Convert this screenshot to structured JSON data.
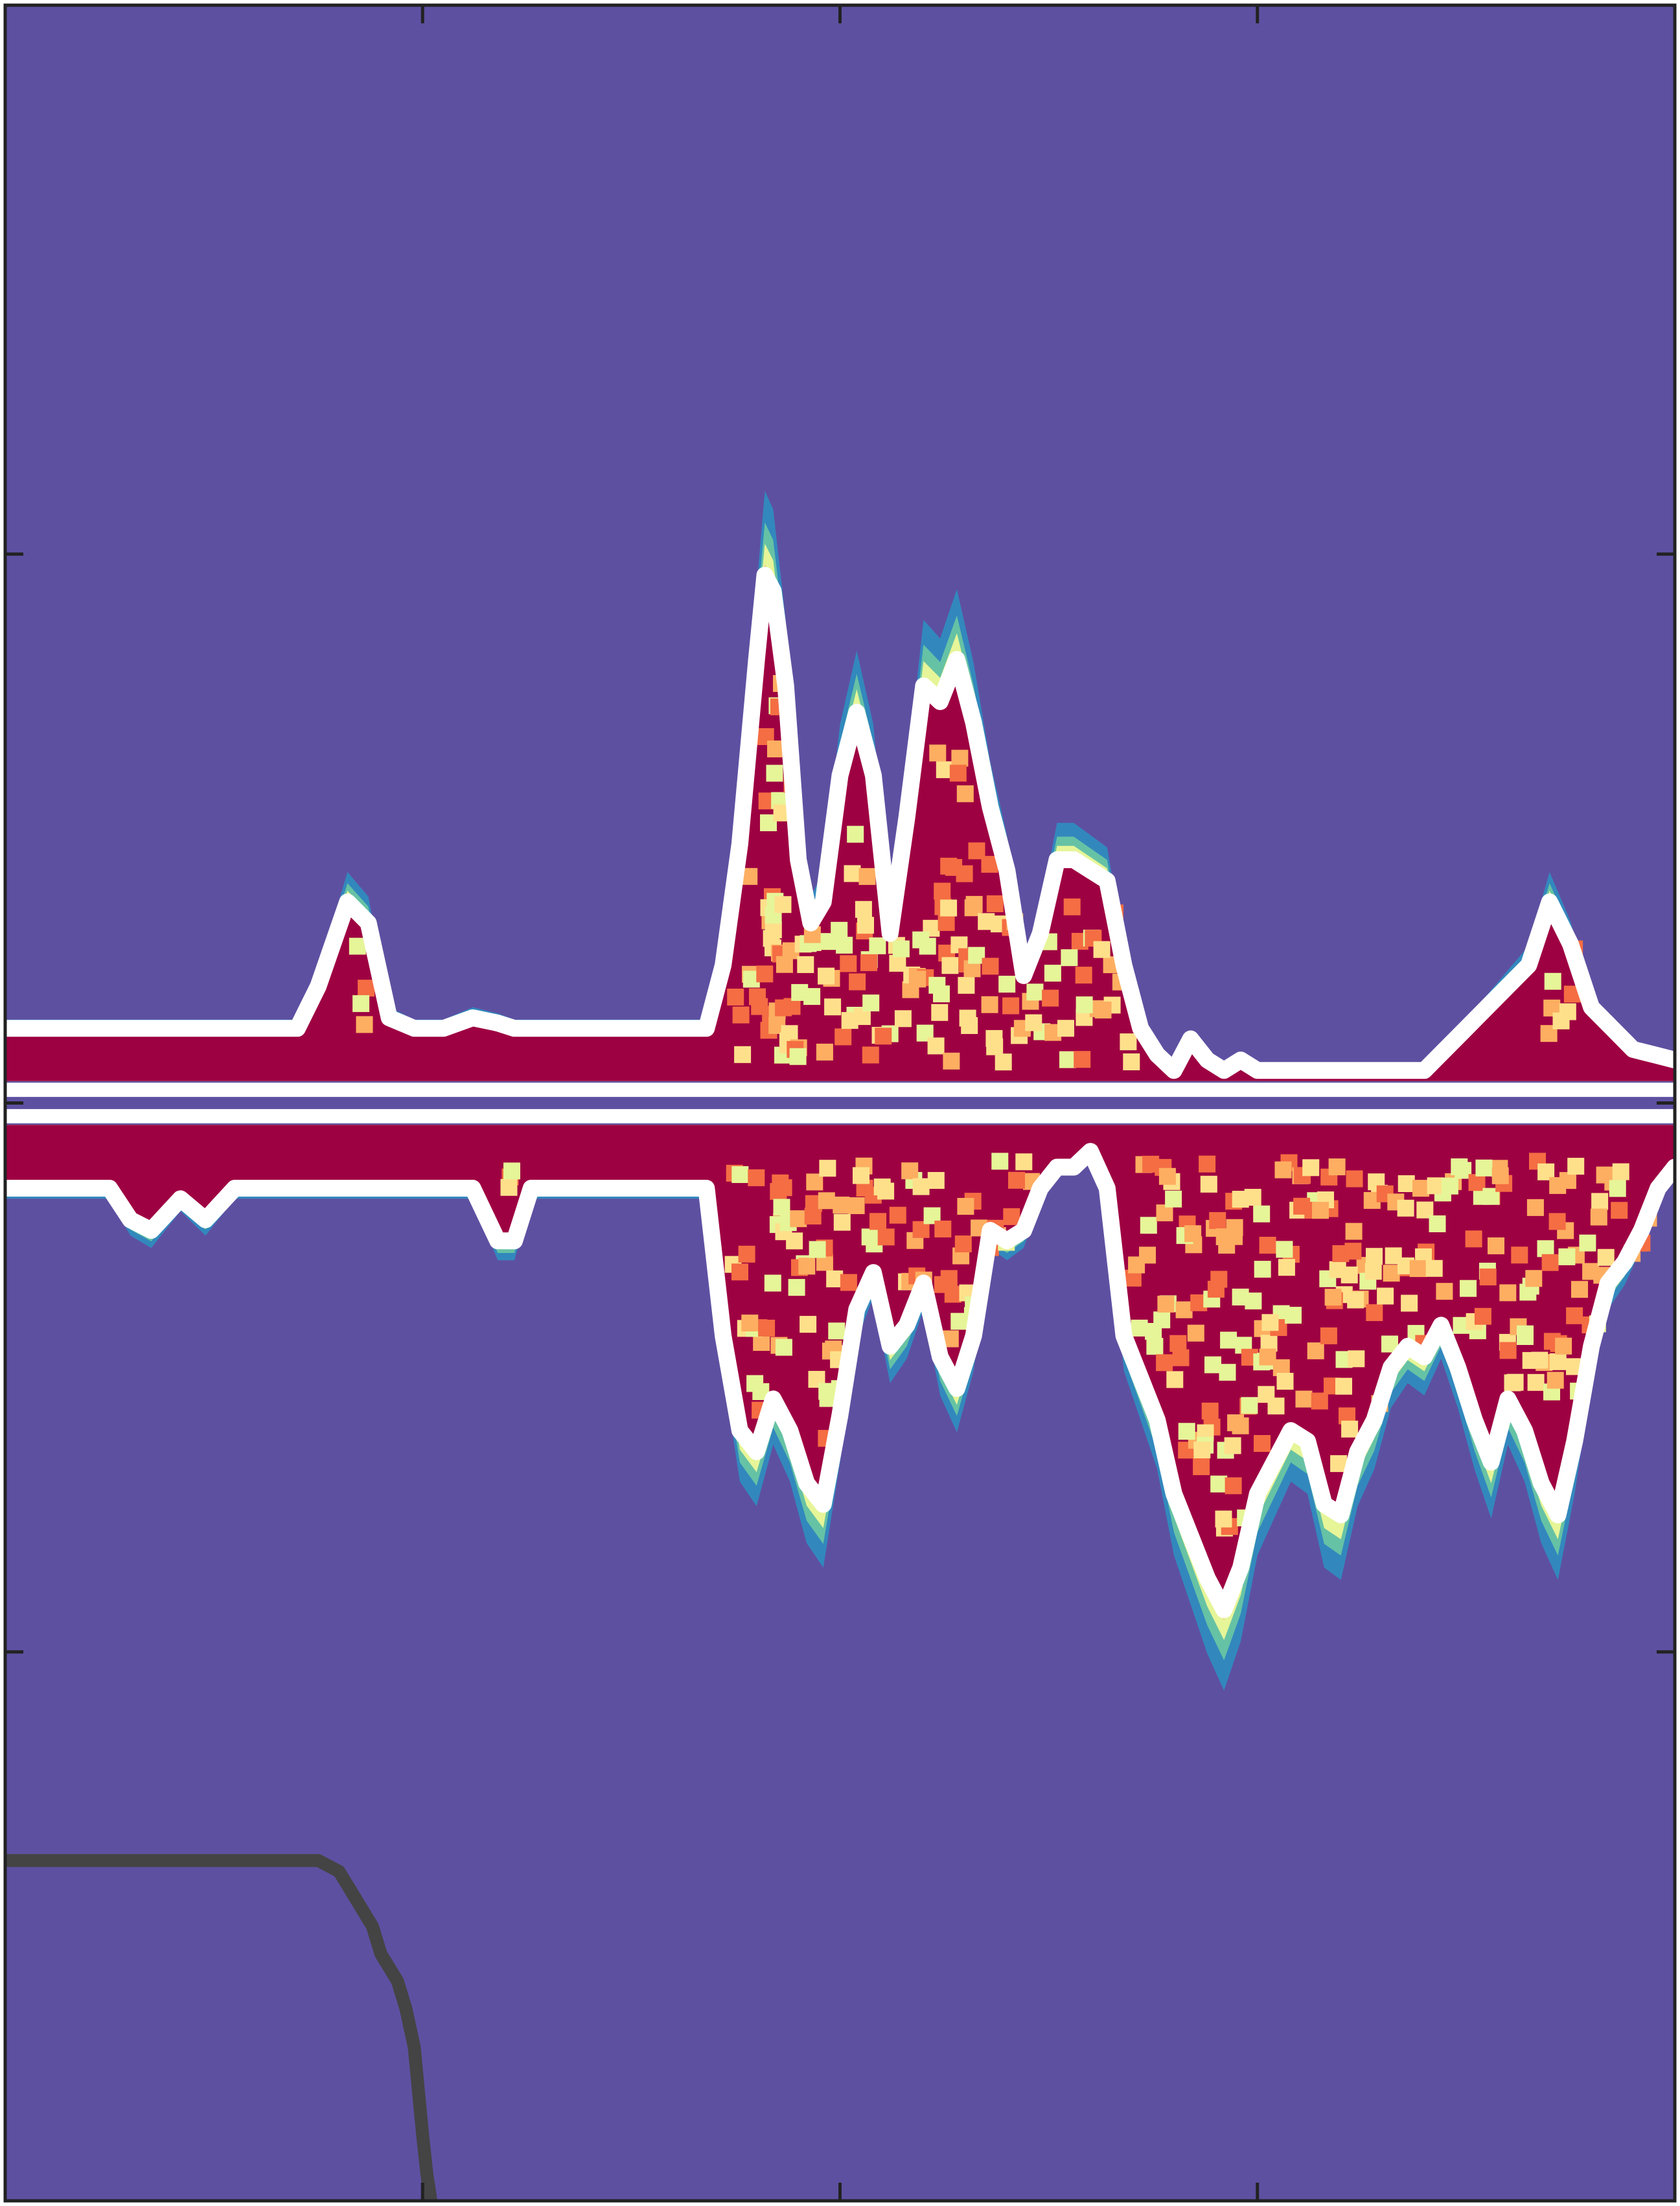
{
  "chart_data": {
    "type": "heatmap",
    "title": "",
    "xlabel": "",
    "ylabel": "",
    "xlim": [
      0,
      4
    ],
    "ylim": [
      -2,
      2
    ],
    "x_ticks": [
      1,
      2,
      3
    ],
    "y_ticks": [
      -1,
      0,
      1
    ],
    "tick_labels_shown": false,
    "grid": false,
    "legend": "none",
    "colormap": "spectral",
    "colors": {
      "background": "#5e50a1",
      "low": "#3288bd",
      "low_mid": "#66c2a5",
      "mid": "#e6f598",
      "mid_high": "#fee08b",
      "high": "#fdae61",
      "higher": "#f46d43",
      "peak": "#9e0142",
      "contour": "#ffffff",
      "boundary_curve": "#444444",
      "axes": "#222222"
    },
    "upper_band": {
      "baseline": 0.0,
      "x": [
        0.0,
        0.25,
        0.5,
        0.7,
        0.75,
        0.82,
        0.87,
        0.92,
        0.98,
        1.05,
        1.12,
        1.18,
        1.22,
        1.3,
        1.4,
        1.5,
        1.6,
        1.68,
        1.72,
        1.76,
        1.8,
        1.82,
        1.84,
        1.87,
        1.9,
        1.93,
        1.96,
        2.0,
        2.04,
        2.08,
        2.12,
        2.16,
        2.2,
        2.24,
        2.28,
        2.32,
        2.36,
        2.4,
        2.44,
        2.48,
        2.52,
        2.56,
        2.6,
        2.64,
        2.68,
        2.72,
        2.76,
        2.8,
        2.84,
        2.88,
        2.92,
        2.96,
        3.0,
        3.1,
        3.2,
        3.3,
        3.4,
        3.5,
        3.55,
        3.6,
        3.65,
        3.7,
        3.75,
        3.8,
        3.85,
        3.9,
        3.95,
        4.0
      ],
      "y": [
        0.1,
        0.1,
        0.1,
        0.1,
        0.18,
        0.34,
        0.3,
        0.12,
        0.1,
        0.1,
        0.12,
        0.11,
        0.1,
        0.1,
        0.1,
        0.1,
        0.1,
        0.1,
        0.22,
        0.45,
        0.8,
        0.96,
        0.93,
        0.75,
        0.42,
        0.3,
        0.34,
        0.58,
        0.7,
        0.58,
        0.28,
        0.5,
        0.75,
        0.72,
        0.8,
        0.68,
        0.52,
        0.4,
        0.2,
        0.28,
        0.42,
        0.42,
        0.4,
        0.38,
        0.22,
        0.1,
        0.05,
        0.02,
        0.08,
        0.04,
        0.02,
        0.04,
        0.02,
        0.02,
        0.02,
        0.02,
        0.02,
        0.1,
        0.14,
        0.18,
        0.22,
        0.34,
        0.26,
        0.14,
        0.1,
        0.06,
        0.05,
        0.04
      ]
    },
    "lower_band": {
      "baseline": 0.0,
      "x": [
        0.0,
        0.25,
        0.3,
        0.35,
        0.42,
        0.48,
        0.55,
        0.7,
        0.85,
        0.95,
        1.05,
        1.12,
        1.18,
        1.22,
        1.26,
        1.3,
        1.4,
        1.5,
        1.6,
        1.68,
        1.72,
        1.76,
        1.8,
        1.84,
        1.88,
        1.92,
        1.96,
        2.0,
        2.04,
        2.08,
        2.12,
        2.16,
        2.2,
        2.24,
        2.28,
        2.32,
        2.36,
        2.4,
        2.44,
        2.48,
        2.52,
        2.56,
        2.6,
        2.64,
        2.68,
        2.72,
        2.76,
        2.8,
        2.84,
        2.88,
        2.92,
        2.96,
        3.0,
        3.04,
        3.08,
        3.12,
        3.16,
        3.2,
        3.24,
        3.28,
        3.32,
        3.36,
        3.4,
        3.44,
        3.48,
        3.52,
        3.56,
        3.6,
        3.64,
        3.68,
        3.72,
        3.76,
        3.8,
        3.84,
        3.88,
        3.92,
        3.96,
        4.0
      ],
      "y": [
        0.12,
        0.12,
        0.18,
        0.2,
        0.14,
        0.18,
        0.12,
        0.12,
        0.12,
        0.12,
        0.12,
        0.12,
        0.22,
        0.22,
        0.12,
        0.12,
        0.12,
        0.12,
        0.12,
        0.12,
        0.4,
        0.58,
        0.62,
        0.52,
        0.58,
        0.68,
        0.72,
        0.55,
        0.35,
        0.28,
        0.42,
        0.38,
        0.3,
        0.44,
        0.5,
        0.4,
        0.2,
        0.22,
        0.2,
        0.12,
        0.08,
        0.08,
        0.05,
        0.12,
        0.4,
        0.48,
        0.56,
        0.7,
        0.78,
        0.86,
        0.92,
        0.84,
        0.7,
        0.64,
        0.58,
        0.6,
        0.72,
        0.74,
        0.62,
        0.56,
        0.46,
        0.42,
        0.44,
        0.38,
        0.46,
        0.56,
        0.64,
        0.52,
        0.58,
        0.68,
        0.74,
        0.6,
        0.42,
        0.3,
        0.26,
        0.2,
        0.12,
        0.08
      ]
    },
    "boundary_curve": {
      "x": [
        0.0,
        0.2,
        0.4,
        0.6,
        0.75,
        0.8,
        0.84,
        0.88,
        0.9,
        0.94,
        0.96,
        0.98,
        0.99,
        1.0,
        1.01,
        1.02
      ],
      "y": [
        -1.38,
        -1.38,
        -1.38,
        -1.38,
        -1.38,
        -1.4,
        -1.45,
        -1.5,
        -1.55,
        -1.6,
        -1.65,
        -1.72,
        -1.8,
        -1.88,
        -1.95,
        -2.0
      ]
    }
  }
}
